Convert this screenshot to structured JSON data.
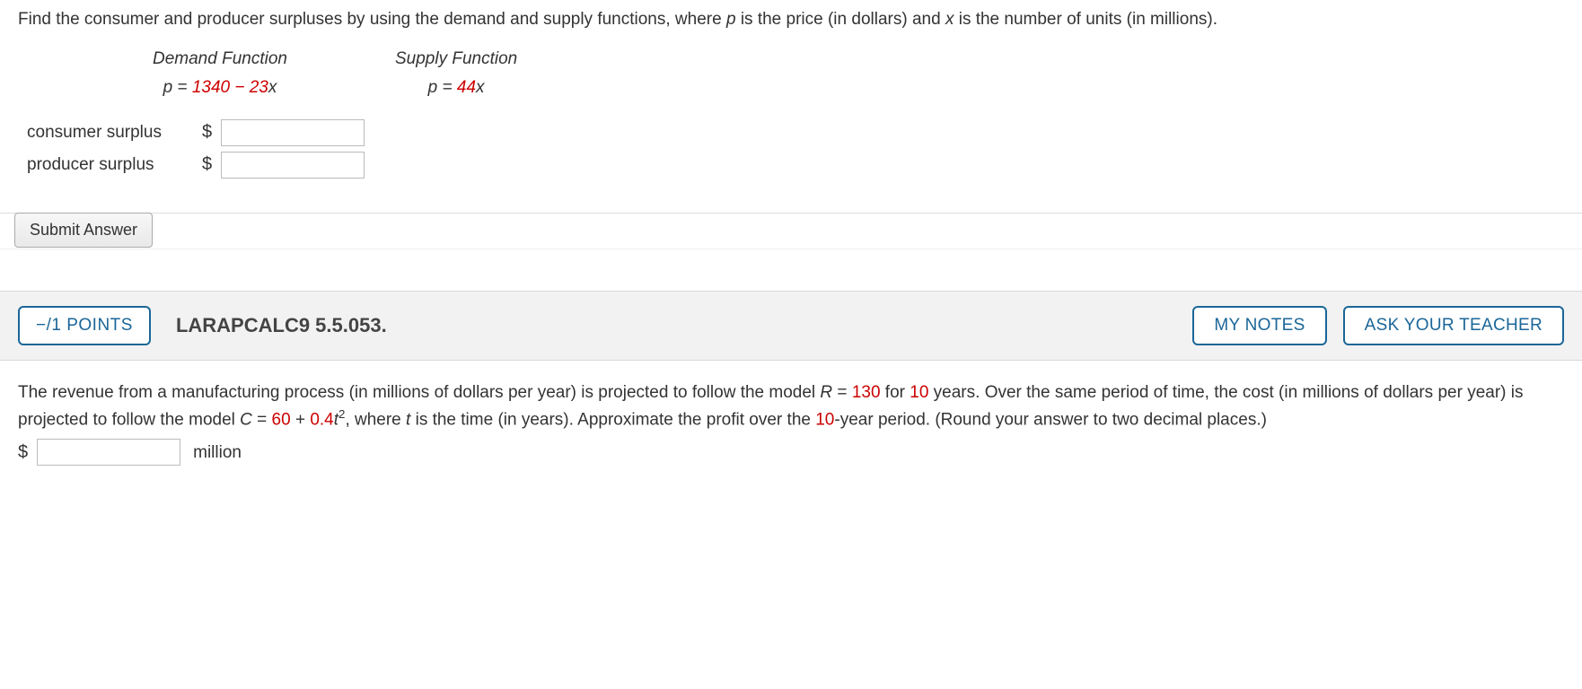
{
  "q1": {
    "prompt_parts": {
      "a": "Find the consumer and producer surpluses by using the demand and supply functions, where ",
      "p": "p",
      "b": " is the price (in dollars) and ",
      "x": "x",
      "c": " is the number of units (in millions)."
    },
    "demand": {
      "title": "Demand Function",
      "eq_prefix": "p = ",
      "eq_val": "1340 − 23",
      "eq_suffix": "x"
    },
    "supply": {
      "title": "Supply Function",
      "eq_prefix": "p = ",
      "eq_val": "44",
      "eq_suffix": "x"
    },
    "consumer_label": "consumer surplus",
    "producer_label": "producer surplus",
    "dollar": "$",
    "consumer_value": "",
    "producer_value": "",
    "submit_label": "Submit Answer"
  },
  "q2": {
    "points": "−/1 POINTS",
    "ref": "LARAPCALC9 5.5.053.",
    "my_notes": "MY NOTES",
    "ask_teacher": "ASK YOUR TEACHER",
    "text": {
      "a": "The revenue from a manufacturing process (in millions of dollars per year) is projected to follow the model ",
      "R": "R",
      "eq1": " = ",
      "v130": "130",
      "b": " for ",
      "v10": "10",
      "c": " years. Over the same period of time, the cost (in millions of dollars per year) is projected to follow the model ",
      "C": "C",
      "eq2": " = ",
      "v60": "60",
      "plus": " + ",
      "v04": "0.4",
      "t": "t",
      "exp": "2",
      "d": ", where ",
      "t2": "t",
      "e": " is the time (in years). Approximate the profit over the ",
      "v10b": "10",
      "f": "-year period. (Round your answer to two decimal places.)"
    },
    "dollar": "$",
    "answer_value": "",
    "unit": "million"
  }
}
